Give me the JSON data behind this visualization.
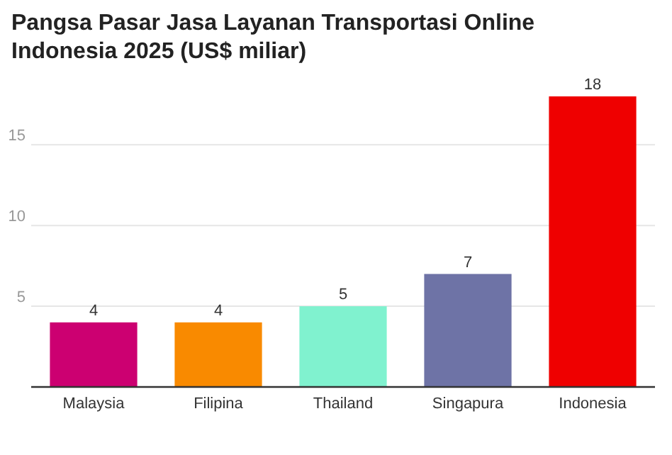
{
  "chart_data": {
    "type": "bar",
    "title": "Pangsa Pasar Jasa Layanan Transportasi Online Indonesia 2025 (US$ miliar)",
    "categories": [
      "Malaysia",
      "Filipina",
      "Thailand",
      "Singapura",
      "Indonesia"
    ],
    "values": [
      4,
      4,
      5,
      7,
      18
    ],
    "colors": [
      "#cc0071",
      "#f98a00",
      "#80f2cf",
      "#6e73a6",
      "#ef0000"
    ],
    "ylim": [
      0,
      18
    ],
    "yticks": [
      5,
      10,
      15
    ],
    "grid": "y",
    "data_labels": true
  }
}
